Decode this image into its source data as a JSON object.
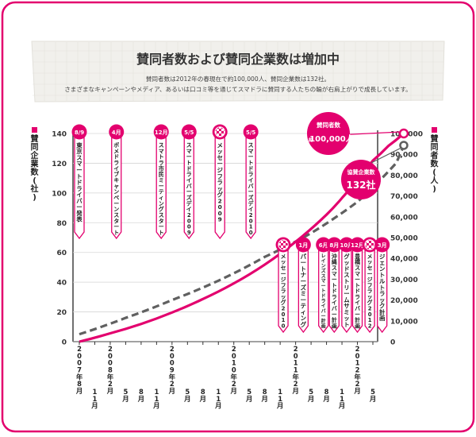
{
  "header": {
    "title": "賛同者数および賛同企業数は増加中",
    "desc_line1": "賛同者数は2012年の春現在で約100,000人、賛同企業数は132社。",
    "desc_line2": "さまざまなキャンペーンやメディア、あるいは口コミ等を通じてスマドラに賛同する人たちの輪が右肩上がりで成長しています。"
  },
  "colors": {
    "accent": "#e3006e",
    "companies_line": "#606060",
    "frame": "#e3006e"
  },
  "chart_data": {
    "type": "line",
    "x_ticks": [
      {
        "year": "2007年",
        "month": "8月"
      },
      {
        "year": "",
        "month": "11月"
      },
      {
        "year": "2008年",
        "month": "2月"
      },
      {
        "year": "",
        "month": "5月"
      },
      {
        "year": "",
        "month": "8月"
      },
      {
        "year": "",
        "month": "11月"
      },
      {
        "year": "2009年",
        "month": "2月"
      },
      {
        "year": "",
        "month": "5月"
      },
      {
        "year": "",
        "month": "8月"
      },
      {
        "year": "",
        "month": "11月"
      },
      {
        "year": "2010年",
        "month": "2月"
      },
      {
        "year": "",
        "month": "5月"
      },
      {
        "year": "",
        "month": "8月"
      },
      {
        "year": "",
        "month": "11月"
      },
      {
        "year": "2011年",
        "month": "2月"
      },
      {
        "year": "",
        "month": "5月"
      },
      {
        "year": "",
        "month": "8月"
      },
      {
        "year": "",
        "month": "11月"
      },
      {
        "year": "2012年",
        "month": "2月"
      },
      {
        "year": "",
        "month": "5月"
      }
    ],
    "y_left": {
      "label": "賛同企業数(社)",
      "ticks": [
        0,
        20,
        40,
        60,
        80,
        100,
        120,
        140
      ],
      "ylim": [
        0,
        140
      ]
    },
    "y_right": {
      "label": "賛同者数(人)",
      "ticks": [
        "0",
        "10,000",
        "20,000",
        "30,000",
        "40,000",
        "50,000",
        "60,000",
        "70,000",
        "80,000",
        "90,000",
        "100,000"
      ],
      "ylim": [
        0,
        100000
      ]
    },
    "series": [
      {
        "axis": "right",
        "points": [
          [
            0,
            0
          ],
          [
            2,
            4000
          ],
          [
            4,
            8500
          ],
          [
            6,
            14000
          ],
          [
            8,
            20500
          ],
          [
            10,
            28000
          ],
          [
            12,
            37000
          ],
          [
            14,
            48000
          ],
          [
            16,
            61000
          ],
          [
            17,
            69000
          ],
          [
            18,
            78000
          ],
          [
            19,
            87000
          ],
          [
            20,
            94000
          ],
          [
            21,
            100000
          ]
        ]
      },
      {
        "axis": "left",
        "points": [
          [
            0,
            5
          ],
          [
            3,
            16
          ],
          [
            6,
            28
          ],
          [
            9,
            41
          ],
          [
            12,
            57
          ],
          [
            15,
            73
          ],
          [
            18,
            94
          ],
          [
            20.5,
            120
          ],
          [
            21,
            132
          ]
        ]
      }
    ],
    "callouts": [
      {
        "title": "賛同者数",
        "prefix": "約",
        "value": "100,000人"
      },
      {
        "title": "協賛企業数",
        "prefix": "",
        "value": "132社"
      }
    ],
    "events_top": [
      {
        "badge": "8/9",
        "icon": "",
        "label": "東京スマートドライバー発表",
        "x": 0
      },
      {
        "badge": "4月",
        "icon": "",
        "label": "ポメドライブキャンペーンスタート",
        "x": 2.4
      },
      {
        "badge": "12月",
        "icon": "",
        "label": "スマトラ市民ミーティングスタート",
        "x": 5.3
      },
      {
        "badge": "5/5",
        "icon": "",
        "label": "スマートドライバーズデイ2009",
        "x": 7.1
      },
      {
        "badge": "",
        "icon": "checkered-flag",
        "label": "メッセージフラッグ2009",
        "x": 9.1
      },
      {
        "badge": "5/5",
        "icon": "",
        "label": "スマートドライバーズデイ2010",
        "x": 11.1
      }
    ],
    "events_bottom": [
      {
        "badge": "",
        "icon": "checkered-flag",
        "label": "メッセージフラッグ2010",
        "x": 13.2
      },
      {
        "badge": "1月",
        "icon": "",
        "label": "パートナーズミーティング",
        "x": 14.5
      },
      {
        "badge": "6月",
        "icon": "",
        "label": "レインズスマートドライバー計画",
        "x": 15.8
      },
      {
        "badge": "8月",
        "icon": "",
        "label": "沖縄スマートドライバー計画",
        "x": 16.5
      },
      {
        "badge": "10月",
        "icon": "",
        "label": "グッドストリームサミット",
        "x": 17.3
      },
      {
        "badge": "12月",
        "icon": "",
        "label": "豊橋スマートドライバー計画",
        "x": 18.0
      },
      {
        "badge": "",
        "icon": "checkered-flag",
        "label": "メッセージフラッグ2012",
        "x": 18.8
      },
      {
        "badge": "3月",
        "icon": "",
        "label": "ジェントルトラック計画",
        "x": 19.6
      }
    ]
  }
}
